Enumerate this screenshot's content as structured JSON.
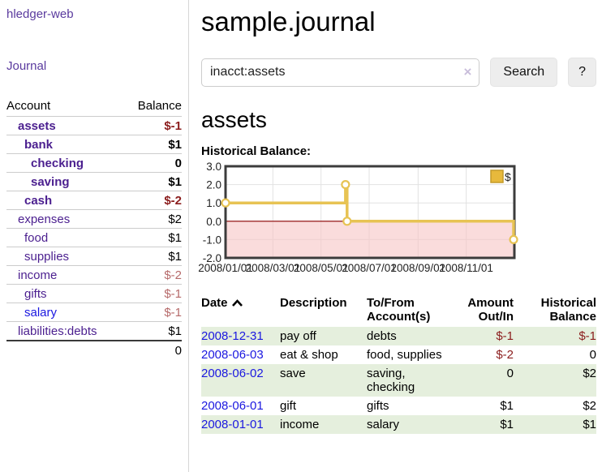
{
  "app": {
    "brand": "hledger-web",
    "nav_journal": "Journal"
  },
  "sidebar": {
    "header": {
      "account": "Account",
      "balance": "Balance"
    },
    "accounts": [
      {
        "name": "assets",
        "balance": "$-1",
        "indent": 1,
        "bold": true,
        "negative": true
      },
      {
        "name": "bank",
        "balance": "$1",
        "indent": 2,
        "bold": true,
        "negative": false
      },
      {
        "name": "checking",
        "balance": "0",
        "indent": 3,
        "bold": true,
        "negative": false
      },
      {
        "name": "saving",
        "balance": "$1",
        "indent": 3,
        "bold": true,
        "negative": false
      },
      {
        "name": "cash",
        "balance": "$-2",
        "indent": 2,
        "bold": true,
        "negative": true
      },
      {
        "name": "expenses",
        "balance": "$2",
        "indent": 1,
        "bold": false,
        "negative": false
      },
      {
        "name": "food",
        "balance": "$1",
        "indent": 2,
        "bold": false,
        "negative": false
      },
      {
        "name": "supplies",
        "balance": "$1",
        "indent": 2,
        "bold": false,
        "negative": false
      },
      {
        "name": "income",
        "balance": "$-2",
        "indent": 1,
        "bold": false,
        "negative": true
      },
      {
        "name": "gifts",
        "balance": "$-1",
        "indent": 2,
        "bold": false,
        "negative": true
      },
      {
        "name": "salary",
        "balance": "$-1",
        "indent": 2,
        "bold": false,
        "negative": true,
        "unvisited": true
      },
      {
        "name": "liabilities:debts",
        "balance": "$1",
        "indent": 1,
        "bold": false,
        "negative": false
      }
    ],
    "total": "0"
  },
  "header": {
    "title": "sample.journal"
  },
  "search": {
    "value": "inacct:assets",
    "clear_icon": "×",
    "button": "Search",
    "help_button": "?"
  },
  "account_page": {
    "heading": "assets",
    "chart_label": "Historical Balance:"
  },
  "chart_data": {
    "type": "line",
    "title": "Historical Balance:",
    "step": true,
    "series": [
      {
        "name": "$",
        "color": "#e7c353",
        "points": [
          [
            "2008-01-01",
            1
          ],
          [
            "2008-06-01",
            2
          ],
          [
            "2008-06-03",
            0
          ],
          [
            "2008-12-31",
            -1
          ]
        ]
      }
    ],
    "x_domain": [
      "2008-01-01",
      "2009-01-01"
    ],
    "x_ticks": [
      "2008/01/01",
      "2008/03/01",
      "2008/05/01",
      "2008/07/01",
      "2008/09/01",
      "2008/11/01"
    ],
    "y_ticks": [
      3.0,
      2.0,
      1.0,
      0.0,
      -1.0,
      -2.0
    ],
    "ylim": [
      -2,
      3
    ],
    "grid": true,
    "negative_fill": "#f7c6c6",
    "zero_line_color": "#8b0000",
    "frame_color": "#3c3c3c",
    "legend": {
      "label": "$",
      "swatch": "#e7b93c",
      "swatch_border": "#c49a28",
      "position": "top-right"
    }
  },
  "register": {
    "columns": [
      {
        "label": "Date",
        "sorted": "asc"
      },
      {
        "label": "Description"
      },
      {
        "label": "To/From Account(s)"
      },
      {
        "label": "Amount Out/In"
      },
      {
        "label": "Historical Balance"
      }
    ],
    "rows": [
      {
        "date": "2008-12-31",
        "description": "pay off",
        "accounts": "debts",
        "amount": "$-1",
        "amount_negative": true,
        "balance": "$-1",
        "balance_negative": true
      },
      {
        "date": "2008-06-03",
        "description": "eat & shop",
        "accounts": "food, supplies",
        "amount": "$-2",
        "amount_negative": true,
        "balance": "0",
        "balance_negative": false
      },
      {
        "date": "2008-06-02",
        "description": "save",
        "accounts": "saving, checking",
        "amount": "0",
        "amount_negative": false,
        "balance": "$2",
        "balance_negative": false
      },
      {
        "date": "2008-06-01",
        "description": "gift",
        "accounts": "gifts",
        "amount": "$1",
        "amount_negative": false,
        "balance": "$2",
        "balance_negative": false
      },
      {
        "date": "2008-01-01",
        "description": "income",
        "accounts": "salary",
        "amount": "$1",
        "amount_negative": false,
        "balance": "$1",
        "balance_negative": false
      }
    ]
  }
}
